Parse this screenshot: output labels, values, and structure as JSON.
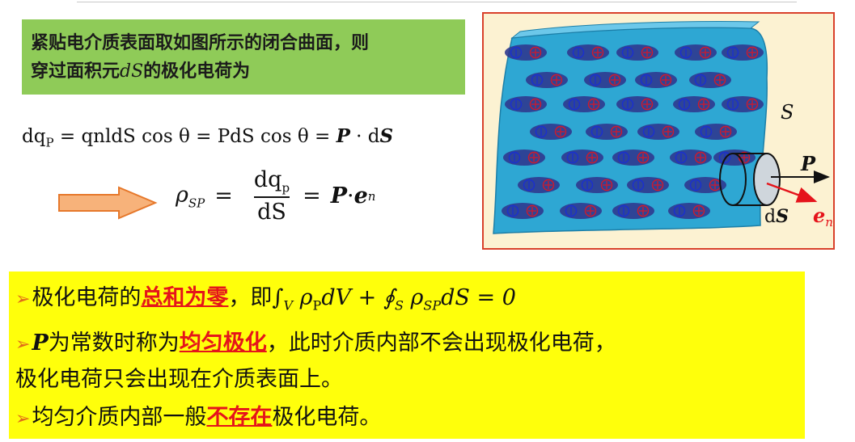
{
  "header": {
    "line1": "紧贴电介质表面取如图所示的闭合曲面，则",
    "line2_pre": "穿过面积元",
    "line2_var": "dS",
    "line2_post": "的极化电荷为"
  },
  "equations": {
    "eq1_text": "dq",
    "eq1_sub": "P",
    "eq1_rest": " = qnldS cos θ = PdS cos θ = ",
    "eq1_P": "P",
    "eq1_dot": " · d",
    "eq1_S": "S",
    "eq2_lhs": "ρ",
    "eq2_lhs_sub": "SP",
    "eq2_eq": "=",
    "eq2_num": "dq",
    "eq2_num_sub": "p",
    "eq2_den": "dS",
    "eq2_P": "P",
    "eq2_dot": " · ",
    "eq2_e": "e",
    "eq2_e_sub": "n"
  },
  "figure": {
    "label_S": "S",
    "label_P": "P",
    "label_dS_d": "d",
    "label_dS_S": "S",
    "label_en": "e",
    "label_en_sub": "n",
    "colors": {
      "surface": "#2ea7d3",
      "dipole": "#2f3a8f",
      "positive": "#d11a2a",
      "negative": "#1a2fd1",
      "en_arrow": "#e5141b"
    }
  },
  "bullets": {
    "b1_pre": "极化电荷的",
    "b1_em": "总和为零",
    "b1_post": "，即",
    "b1_math": "∫",
    "b1_math_sub": "V",
    "b1_rho": " ρ",
    "b1_rho_sub": "P",
    "b1_dv": "dV + ∮",
    "b1_s_sub": "S",
    "b1_rho2": " ρ",
    "b1_rho2_sub": "SP",
    "b1_end": "dS = 0",
    "b2_P": "P",
    "b2_pre": "为常数时称为",
    "b2_em": "均匀极化",
    "b2_post": "，此时介质内部不会出现极化电荷，",
    "b2_line2": "极化电荷只会出现在介质表面上。",
    "b3_pre": "均匀介质内部一般",
    "b3_em": "不存在",
    "b3_post": "极化电荷。"
  },
  "colors": {
    "green_box": "#8fcb58",
    "yellow_box": "#ffff0b",
    "arrow_fill": "#f7b27a",
    "arrow_stroke": "#e6782b",
    "emphasis": "#e5141b"
  }
}
